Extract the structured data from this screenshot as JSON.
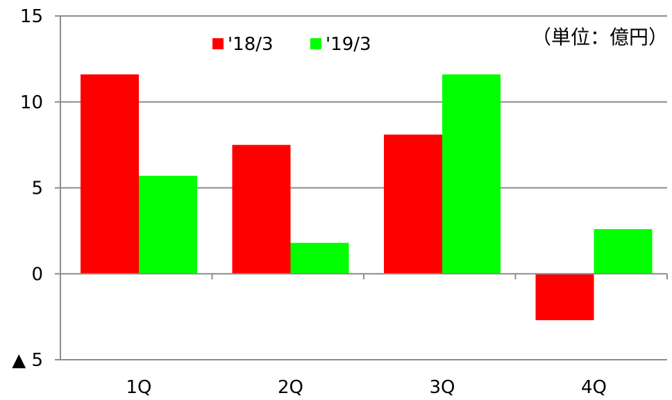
{
  "chart_data": {
    "type": "bar",
    "categories": [
      "1Q",
      "2Q",
      "3Q",
      "4Q"
    ],
    "series": [
      {
        "name": "'18/3",
        "values": [
          11.6,
          7.5,
          8.1,
          -2.7
        ],
        "color": "#ff0000"
      },
      {
        "name": "'19/3",
        "values": [
          5.7,
          1.8,
          11.6,
          2.6
        ],
        "color": "#00ff00"
      }
    ],
    "unit": "（単位：億円）",
    "yticks": [
      {
        "value": 15,
        "label": "15"
      },
      {
        "value": 10,
        "label": "10"
      },
      {
        "value": 5,
        "label": "5"
      },
      {
        "value": 0,
        "label": "0"
      },
      {
        "value": -5,
        "label": "▲ 5"
      }
    ],
    "ylim": [
      -5,
      15
    ],
    "grid": true,
    "legend_position": "top-center"
  }
}
